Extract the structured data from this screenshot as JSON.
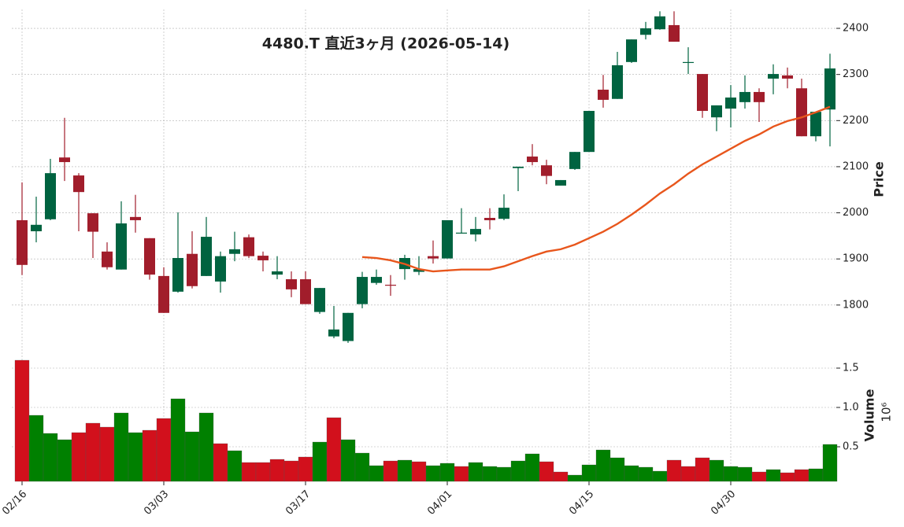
{
  "chart_data": {
    "type": "candlestick",
    "title": "4480.T 直近3ヶ月 (2026-05-14)",
    "categories": [
      "02/16",
      null,
      null,
      null,
      null,
      null,
      null,
      null,
      null,
      null,
      "03/03",
      null,
      null,
      null,
      null,
      null,
      null,
      null,
      null,
      null,
      "03/17",
      null,
      null,
      null,
      null,
      null,
      null,
      null,
      null,
      null,
      "04/01",
      null,
      null,
      null,
      null,
      null,
      null,
      null,
      null,
      null,
      "04/15",
      null,
      null,
      null,
      null,
      null,
      null,
      null,
      null,
      null,
      "04/30",
      null,
      null,
      null,
      null,
      null,
      null,
      null
    ],
    "open": [
      1984,
      1960,
      1986,
      2120,
      2081,
      1999,
      1916,
      1877,
      1991,
      1945,
      1863,
      1829,
      1911,
      1863,
      1851,
      1911,
      1947,
      1907,
      1866,
      1856,
      1856,
      1785,
      1732,
      1722,
      1802,
      1848,
      1844,
      1878,
      1872,
      1906,
      1901,
      1955,
      1953,
      1989,
      1987,
      2097,
      2122,
      2103,
      2059,
      2095,
      2132,
      2267,
      2247,
      2327,
      2386,
      2398,
      2407,
      2325,
      2301,
      2207,
      2226,
      2240,
      2262,
      2291,
      2298,
      2270,
      2166,
      2224
    ],
    "high": [
      2066,
      2035,
      2117,
      2206,
      2086,
      1999,
      1936,
      2025,
      2039,
      1945,
      1882,
      2001,
      1960,
      1991,
      1916,
      1959,
      1953,
      1916,
      1906,
      1873,
      1873,
      1837,
      1798,
      1783,
      1872,
      1877,
      1865,
      1909,
      1906,
      1940,
      1984,
      2010,
      1991,
      2010,
      2040,
      2100,
      2149,
      2115,
      2071,
      2132,
      2221,
      2299,
      2349,
      2376,
      2414,
      2437,
      2437,
      2359,
      2301,
      2233,
      2277,
      2298,
      2270,
      2322,
      2315,
      2291,
      2219,
      2345
    ],
    "low": [
      1865,
      1936,
      1984,
      2069,
      1960,
      1902,
      1877,
      1877,
      1957,
      1855,
      1783,
      1827,
      1836,
      1863,
      1827,
      1895,
      1902,
      1873,
      1856,
      1817,
      1802,
      1781,
      1728,
      1718,
      1793,
      1844,
      1820,
      1855,
      1865,
      1890,
      1901,
      1955,
      1938,
      1964,
      1984,
      2047,
      2103,
      2062,
      2059,
      2093,
      2132,
      2228,
      2247,
      2325,
      2376,
      2397,
      2371,
      2301,
      2206,
      2177,
      2185,
      2226,
      2197,
      2257,
      2270,
      2166,
      2155,
      2144
    ],
    "close": [
      1887,
      1974,
      2086,
      2110,
      2045,
      1959,
      1882,
      1977,
      1984,
      1866,
      1783,
      1902,
      1841,
      1948,
      1906,
      1921,
      1906,
      1897,
      1873,
      1834,
      1802,
      1837,
      1747,
      1783,
      1861,
      1861,
      1842,
      1902,
      1878,
      1901,
      1984,
      1957,
      1965,
      1984,
      2011,
      2100,
      2110,
      2080,
      2071,
      2132,
      2221,
      2245,
      2320,
      2376,
      2400,
      2426,
      2371,
      2327,
      2221,
      2233,
      2250,
      2262,
      2240,
      2301,
      2291,
      2166,
      2219,
      2313
    ],
    "up_color": "#006340",
    "down_color": "#a11d2b",
    "ylabel": "Price",
    "ylim": [
      1711,
      2441
    ],
    "yticks": [
      1800,
      1900,
      2000,
      2100,
      2200,
      2300,
      2400
    ],
    "grid": true,
    "moving_average": {
      "color": "#e8561c",
      "values": [
        null,
        null,
        null,
        null,
        null,
        null,
        null,
        null,
        null,
        null,
        null,
        null,
        null,
        null,
        null,
        null,
        null,
        null,
        null,
        null,
        null,
        null,
        null,
        null,
        1904,
        1902,
        1897,
        1889,
        1878,
        1873,
        1875,
        1877,
        1877,
        1877,
        1884,
        1895,
        1906,
        1916,
        1921,
        1931,
        1945,
        1959,
        1976,
        1996,
        2018,
        2042,
        2062,
        2085,
        2105,
        2122,
        2139,
        2156,
        2170,
        2187,
        2199,
        2207,
        2218,
        2230
      ]
    },
    "volume": {
      "ylabel": "Volume",
      "scale_label": "10⁶",
      "ylim": [
        0.06,
        1.66
      ],
      "yticks": [
        0.5,
        {
          "value": 1,
          "label": "1.0"
        },
        1.5
      ],
      "values": [
        1.6,
        0.9,
        0.67,
        0.59,
        0.68,
        0.8,
        0.75,
        0.93,
        0.68,
        0.71,
        0.86,
        1.11,
        0.69,
        0.93,
        0.54,
        0.45,
        0.3,
        0.3,
        0.34,
        0.32,
        0.37,
        0.56,
        0.87,
        0.59,
        0.42,
        0.26,
        0.32,
        0.33,
        0.31,
        0.26,
        0.29,
        0.25,
        0.3,
        0.25,
        0.24,
        0.32,
        0.41,
        0.31,
        0.18,
        0.14,
        0.27,
        0.46,
        0.36,
        0.26,
        0.24,
        0.19,
        0.33,
        0.25,
        0.36,
        0.33,
        0.25,
        0.24,
        0.18,
        0.21,
        0.17,
        0.21,
        0.22,
        0.53
      ],
      "colors": [
        "#d2101c",
        "#008000",
        "#008000",
        "#008000",
        "#d2101c",
        "#d2101c",
        "#d2101c",
        "#008000",
        "#008000",
        "#d2101c",
        "#d2101c",
        "#008000",
        "#008000",
        "#008000",
        "#d2101c",
        "#008000",
        "#d2101c",
        "#d2101c",
        "#d2101c",
        "#d2101c",
        "#d2101c",
        "#008000",
        "#d2101c",
        "#008000",
        "#008000",
        "#008000",
        "#d2101c",
        "#008000",
        "#d2101c",
        "#008000",
        "#008000",
        "#d2101c",
        "#008000",
        "#008000",
        "#008000",
        "#008000",
        "#008000",
        "#d2101c",
        "#d2101c",
        "#008000",
        "#008000",
        "#008000",
        "#008000",
        "#008000",
        "#008000",
        "#008000",
        "#d2101c",
        "#d2101c",
        "#d2101c",
        "#008000",
        "#008000",
        "#008000",
        "#d2101c",
        "#008000",
        "#d2101c",
        "#d2101c",
        "#008000",
        "#008000"
      ]
    }
  }
}
